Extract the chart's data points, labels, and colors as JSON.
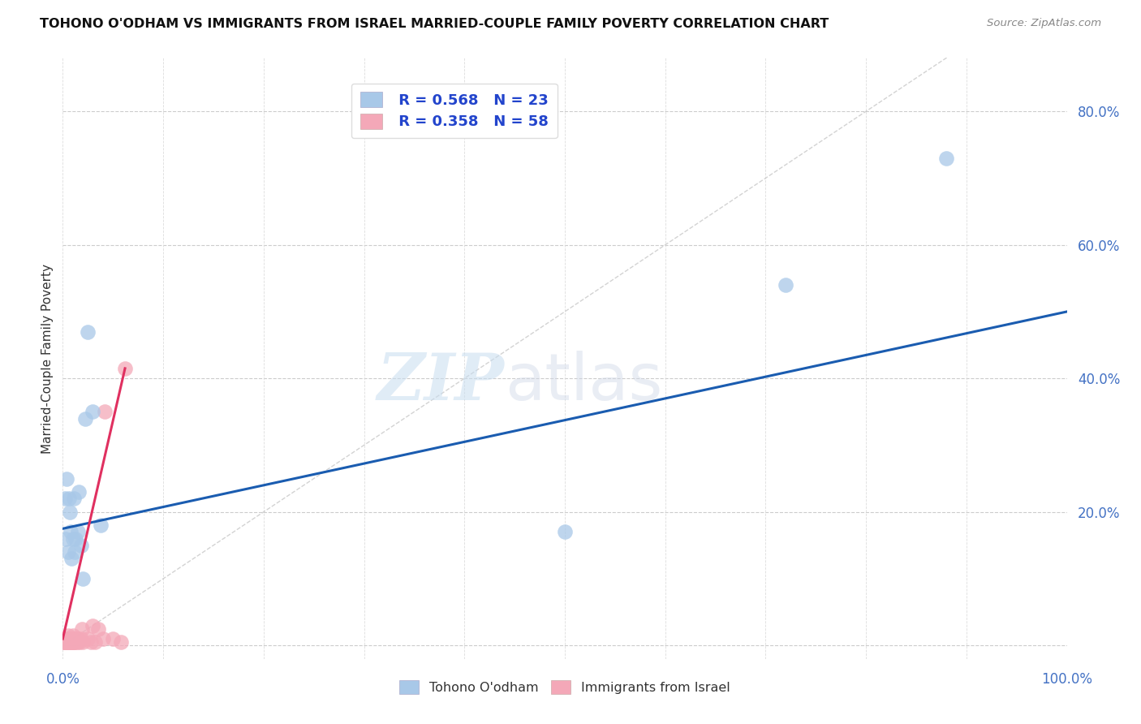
{
  "title": "TOHONO O'ODHAM VS IMMIGRANTS FROM ISRAEL MARRIED-COUPLE FAMILY POVERTY CORRELATION CHART",
  "source": "Source: ZipAtlas.com",
  "tick_color": "#4472c4",
  "ylabel": "Married-Couple Family Poverty",
  "watermark_zip": "ZIP",
  "watermark_atlas": "atlas",
  "blue_R": 0.568,
  "blue_N": 23,
  "pink_R": 0.358,
  "pink_N": 58,
  "blue_points_x": [
    0.002,
    0.003,
    0.004,
    0.005,
    0.006,
    0.007,
    0.008,
    0.009,
    0.01,
    0.011,
    0.012,
    0.013,
    0.015,
    0.016,
    0.018,
    0.02,
    0.022,
    0.025,
    0.03,
    0.038,
    0.5,
    0.72,
    0.88
  ],
  "blue_points_y": [
    0.22,
    0.16,
    0.25,
    0.14,
    0.22,
    0.2,
    0.17,
    0.13,
    0.16,
    0.22,
    0.14,
    0.16,
    0.17,
    0.23,
    0.15,
    0.1,
    0.34,
    0.47,
    0.35,
    0.18,
    0.17,
    0.54,
    0.73
  ],
  "pink_points_x": [
    0.001,
    0.001,
    0.001,
    0.001,
    0.002,
    0.002,
    0.002,
    0.003,
    0.003,
    0.003,
    0.003,
    0.004,
    0.004,
    0.004,
    0.004,
    0.005,
    0.005,
    0.005,
    0.005,
    0.005,
    0.006,
    0.006,
    0.006,
    0.007,
    0.007,
    0.007,
    0.008,
    0.008,
    0.009,
    0.009,
    0.01,
    0.01,
    0.01,
    0.01,
    0.011,
    0.011,
    0.012,
    0.012,
    0.013,
    0.013,
    0.014,
    0.015,
    0.015,
    0.016,
    0.017,
    0.018,
    0.019,
    0.02,
    0.025,
    0.028,
    0.03,
    0.032,
    0.035,
    0.04,
    0.042,
    0.05,
    0.058,
    0.062
  ],
  "pink_points_y": [
    0.005,
    0.005,
    0.008,
    0.01,
    0.005,
    0.005,
    0.008,
    0.005,
    0.005,
    0.008,
    0.01,
    0.005,
    0.005,
    0.008,
    0.01,
    0.005,
    0.005,
    0.008,
    0.01,
    0.015,
    0.005,
    0.005,
    0.008,
    0.005,
    0.008,
    0.01,
    0.005,
    0.008,
    0.005,
    0.01,
    0.005,
    0.005,
    0.01,
    0.015,
    0.005,
    0.01,
    0.005,
    0.01,
    0.005,
    0.008,
    0.01,
    0.005,
    0.01,
    0.008,
    0.005,
    0.01,
    0.025,
    0.005,
    0.01,
    0.005,
    0.03,
    0.005,
    0.025,
    0.01,
    0.35,
    0.01,
    0.005,
    0.415
  ],
  "blue_color": "#a8c8e8",
  "pink_color": "#f4a8b8",
  "blue_line_color": "#1a5cb0",
  "pink_line_color": "#e03060",
  "diagonal_color": "#c8c8c8",
  "xlim": [
    0,
    1.0
  ],
  "ylim": [
    -0.02,
    0.88
  ],
  "grid_yticks": [
    0.0,
    0.2,
    0.4,
    0.6,
    0.8
  ],
  "grid_xticks": [
    0.0,
    0.1,
    0.2,
    0.3,
    0.4,
    0.5,
    0.6,
    0.7,
    0.8,
    0.9,
    1.0
  ],
  "right_ytick_vals": [
    0.2,
    0.4,
    0.6,
    0.8
  ],
  "right_ytick_labels": [
    "20.0%",
    "40.0%",
    "60.0%",
    "80.0%"
  ],
  "legend_label_blue": "Tohono O'odham",
  "legend_label_pink": "Immigrants from Israel",
  "blue_trend_x0": 0.0,
  "blue_trend_y0": 0.175,
  "blue_trend_x1": 1.0,
  "blue_trend_y1": 0.5,
  "pink_trend_x0": 0.0,
  "pink_trend_y0": 0.01,
  "pink_trend_x1": 0.062,
  "pink_trend_y1": 0.415
}
